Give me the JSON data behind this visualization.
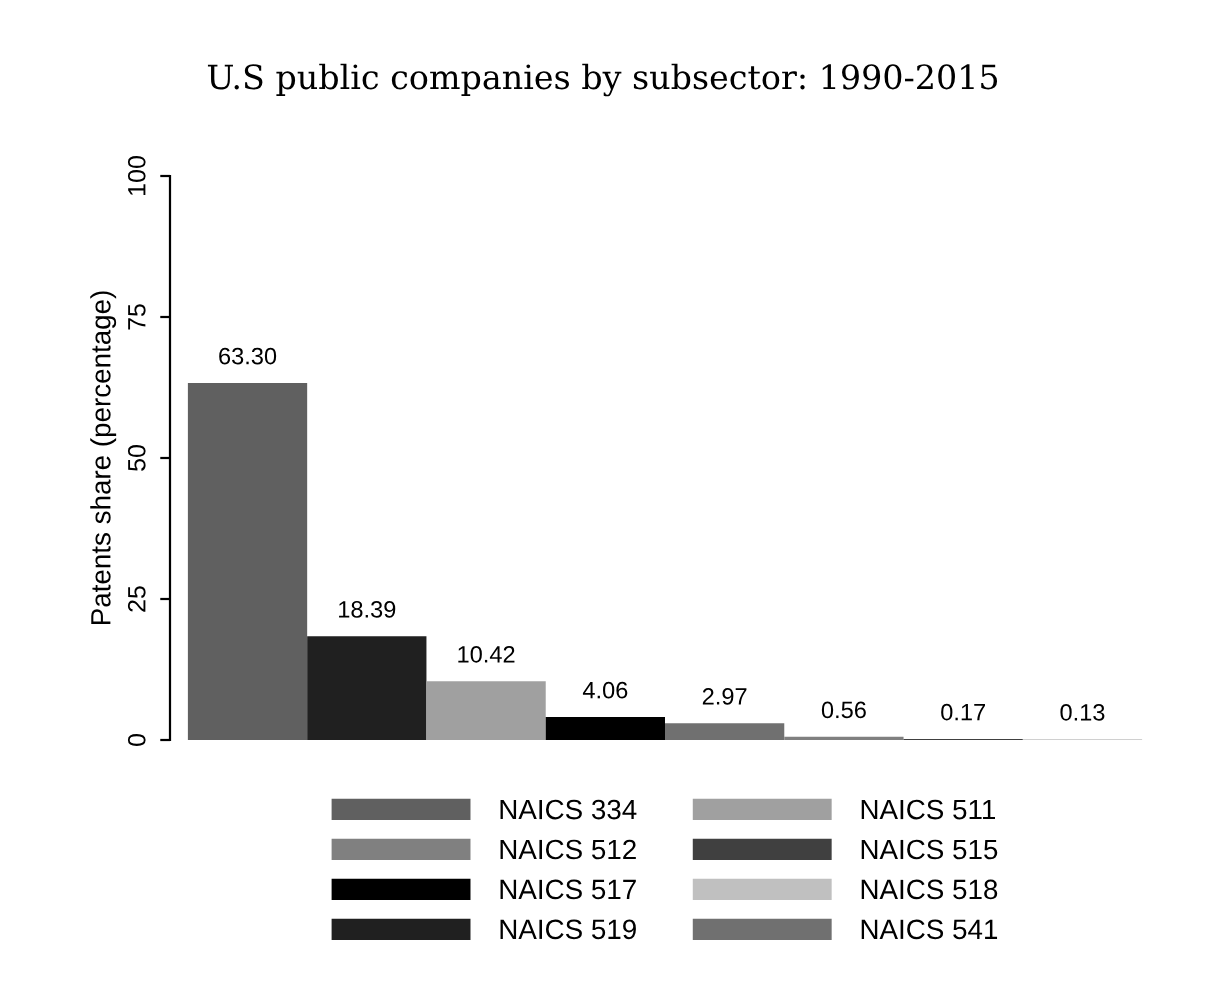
{
  "chart_data": {
    "type": "bar",
    "title": "U.S public companies by subsector: 1990-2015",
    "ylabel": "Patents share (percentage)",
    "categories": [
      null
    ],
    "series": [
      {
        "name": "NAICS 334",
        "color": "#606060",
        "values": [
          63.3
        ],
        "value_labels": [
          "63.30"
        ]
      },
      {
        "name": "NAICS 519",
        "color": "#202020",
        "values": [
          18.39
        ],
        "value_labels": [
          "18.39"
        ]
      },
      {
        "name": "NAICS 511",
        "color": "#a0a0a0",
        "values": [
          10.42
        ],
        "value_labels": [
          "10.42"
        ]
      },
      {
        "name": "NAICS 517",
        "color": "#000000",
        "values": [
          4.06
        ],
        "value_labels": [
          "4.06"
        ]
      },
      {
        "name": "NAICS 541",
        "color": "#707070",
        "values": [
          2.97
        ],
        "value_labels": [
          "2.97"
        ]
      },
      {
        "name": "NAICS 512",
        "color": "#808080",
        "values": [
          0.56
        ],
        "value_labels": [
          "0.56"
        ]
      },
      {
        "name": "NAICS 515",
        "color": "#404040",
        "values": [
          0.17
        ],
        "value_labels": [
          "0.17"
        ]
      },
      {
        "name": "NAICS 518",
        "color": "#c0c0c0",
        "values": [
          0.13
        ],
        "value_labels": [
          "0.13"
        ]
      }
    ],
    "ylim": [
      0,
      100
    ],
    "yticks": [
      0,
      25,
      50,
      75,
      100
    ],
    "grid": false,
    "legend": "bottom"
  }
}
